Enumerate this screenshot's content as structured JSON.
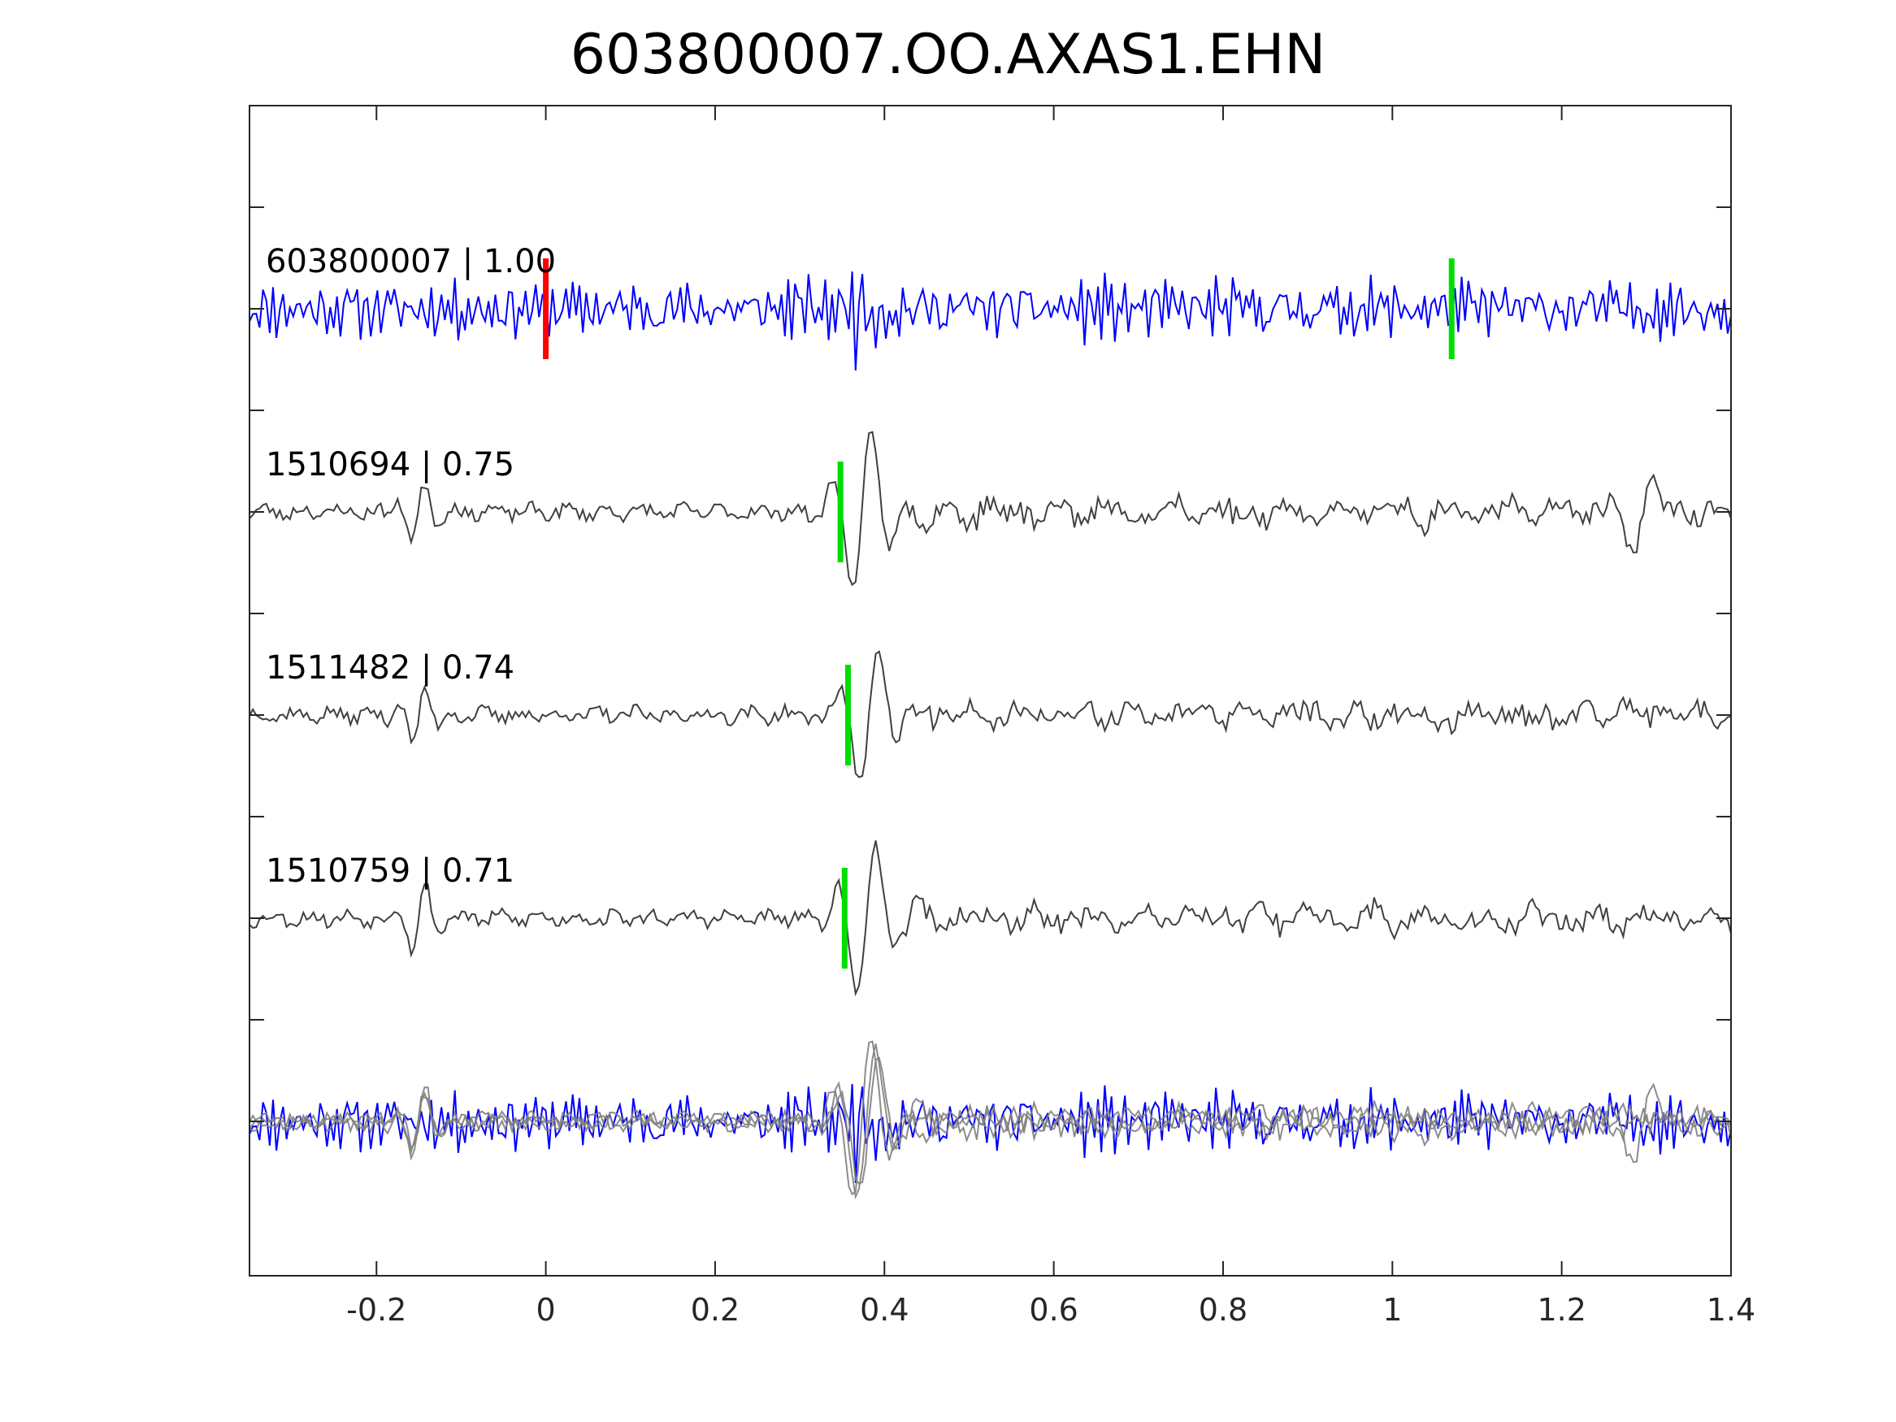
{
  "chart_data": {
    "type": "line",
    "title": "603800007.OO.AXAS1.EHN",
    "xlim": [
      -0.35,
      1.4
    ],
    "xticks": [
      -0.2,
      0,
      0.2,
      0.4,
      0.6,
      0.8,
      1,
      1.2,
      1.4
    ],
    "xtick_labels": [
      "-0.2",
      "0",
      "0.2",
      "0.4",
      "0.6",
      "0.8",
      "1",
      "1.2",
      "1.4"
    ],
    "grid": false,
    "colors": {
      "target_trace": "#0000ff",
      "template_trace": "#404040",
      "overlay_template": "#808080",
      "target_pick": "#ff0000",
      "match_pick": "#00dd00",
      "axes": "#262626"
    },
    "traces": [
      {
        "label": "603800007 | 1.00",
        "id": "603800007",
        "cc": 1.0,
        "color": "target",
        "seed": 11,
        "amp": 1.0,
        "picks": [
          {
            "t": 0.0,
            "color": "red"
          },
          {
            "t": 1.07,
            "color": "green"
          }
        ]
      },
      {
        "label": "1510694 | 0.75",
        "id": "1510694",
        "cc": 0.75,
        "color": "template",
        "seed": 23,
        "amp": 0.55,
        "picks": [
          {
            "t": 0.348,
            "color": "green"
          }
        ]
      },
      {
        "label": "1511482 | 0.74",
        "id": "1511482",
        "cc": 0.74,
        "color": "template",
        "seed": 37,
        "amp": 0.55,
        "picks": [
          {
            "t": 0.357,
            "color": "green"
          }
        ]
      },
      {
        "label": "1510759 | 0.71",
        "id": "1510759",
        "cc": 0.71,
        "color": "template",
        "seed": 53,
        "amp": 0.55,
        "picks": [
          {
            "t": 0.353,
            "color": "green"
          }
        ]
      }
    ],
    "overlay": {
      "description_shown": false
    }
  }
}
